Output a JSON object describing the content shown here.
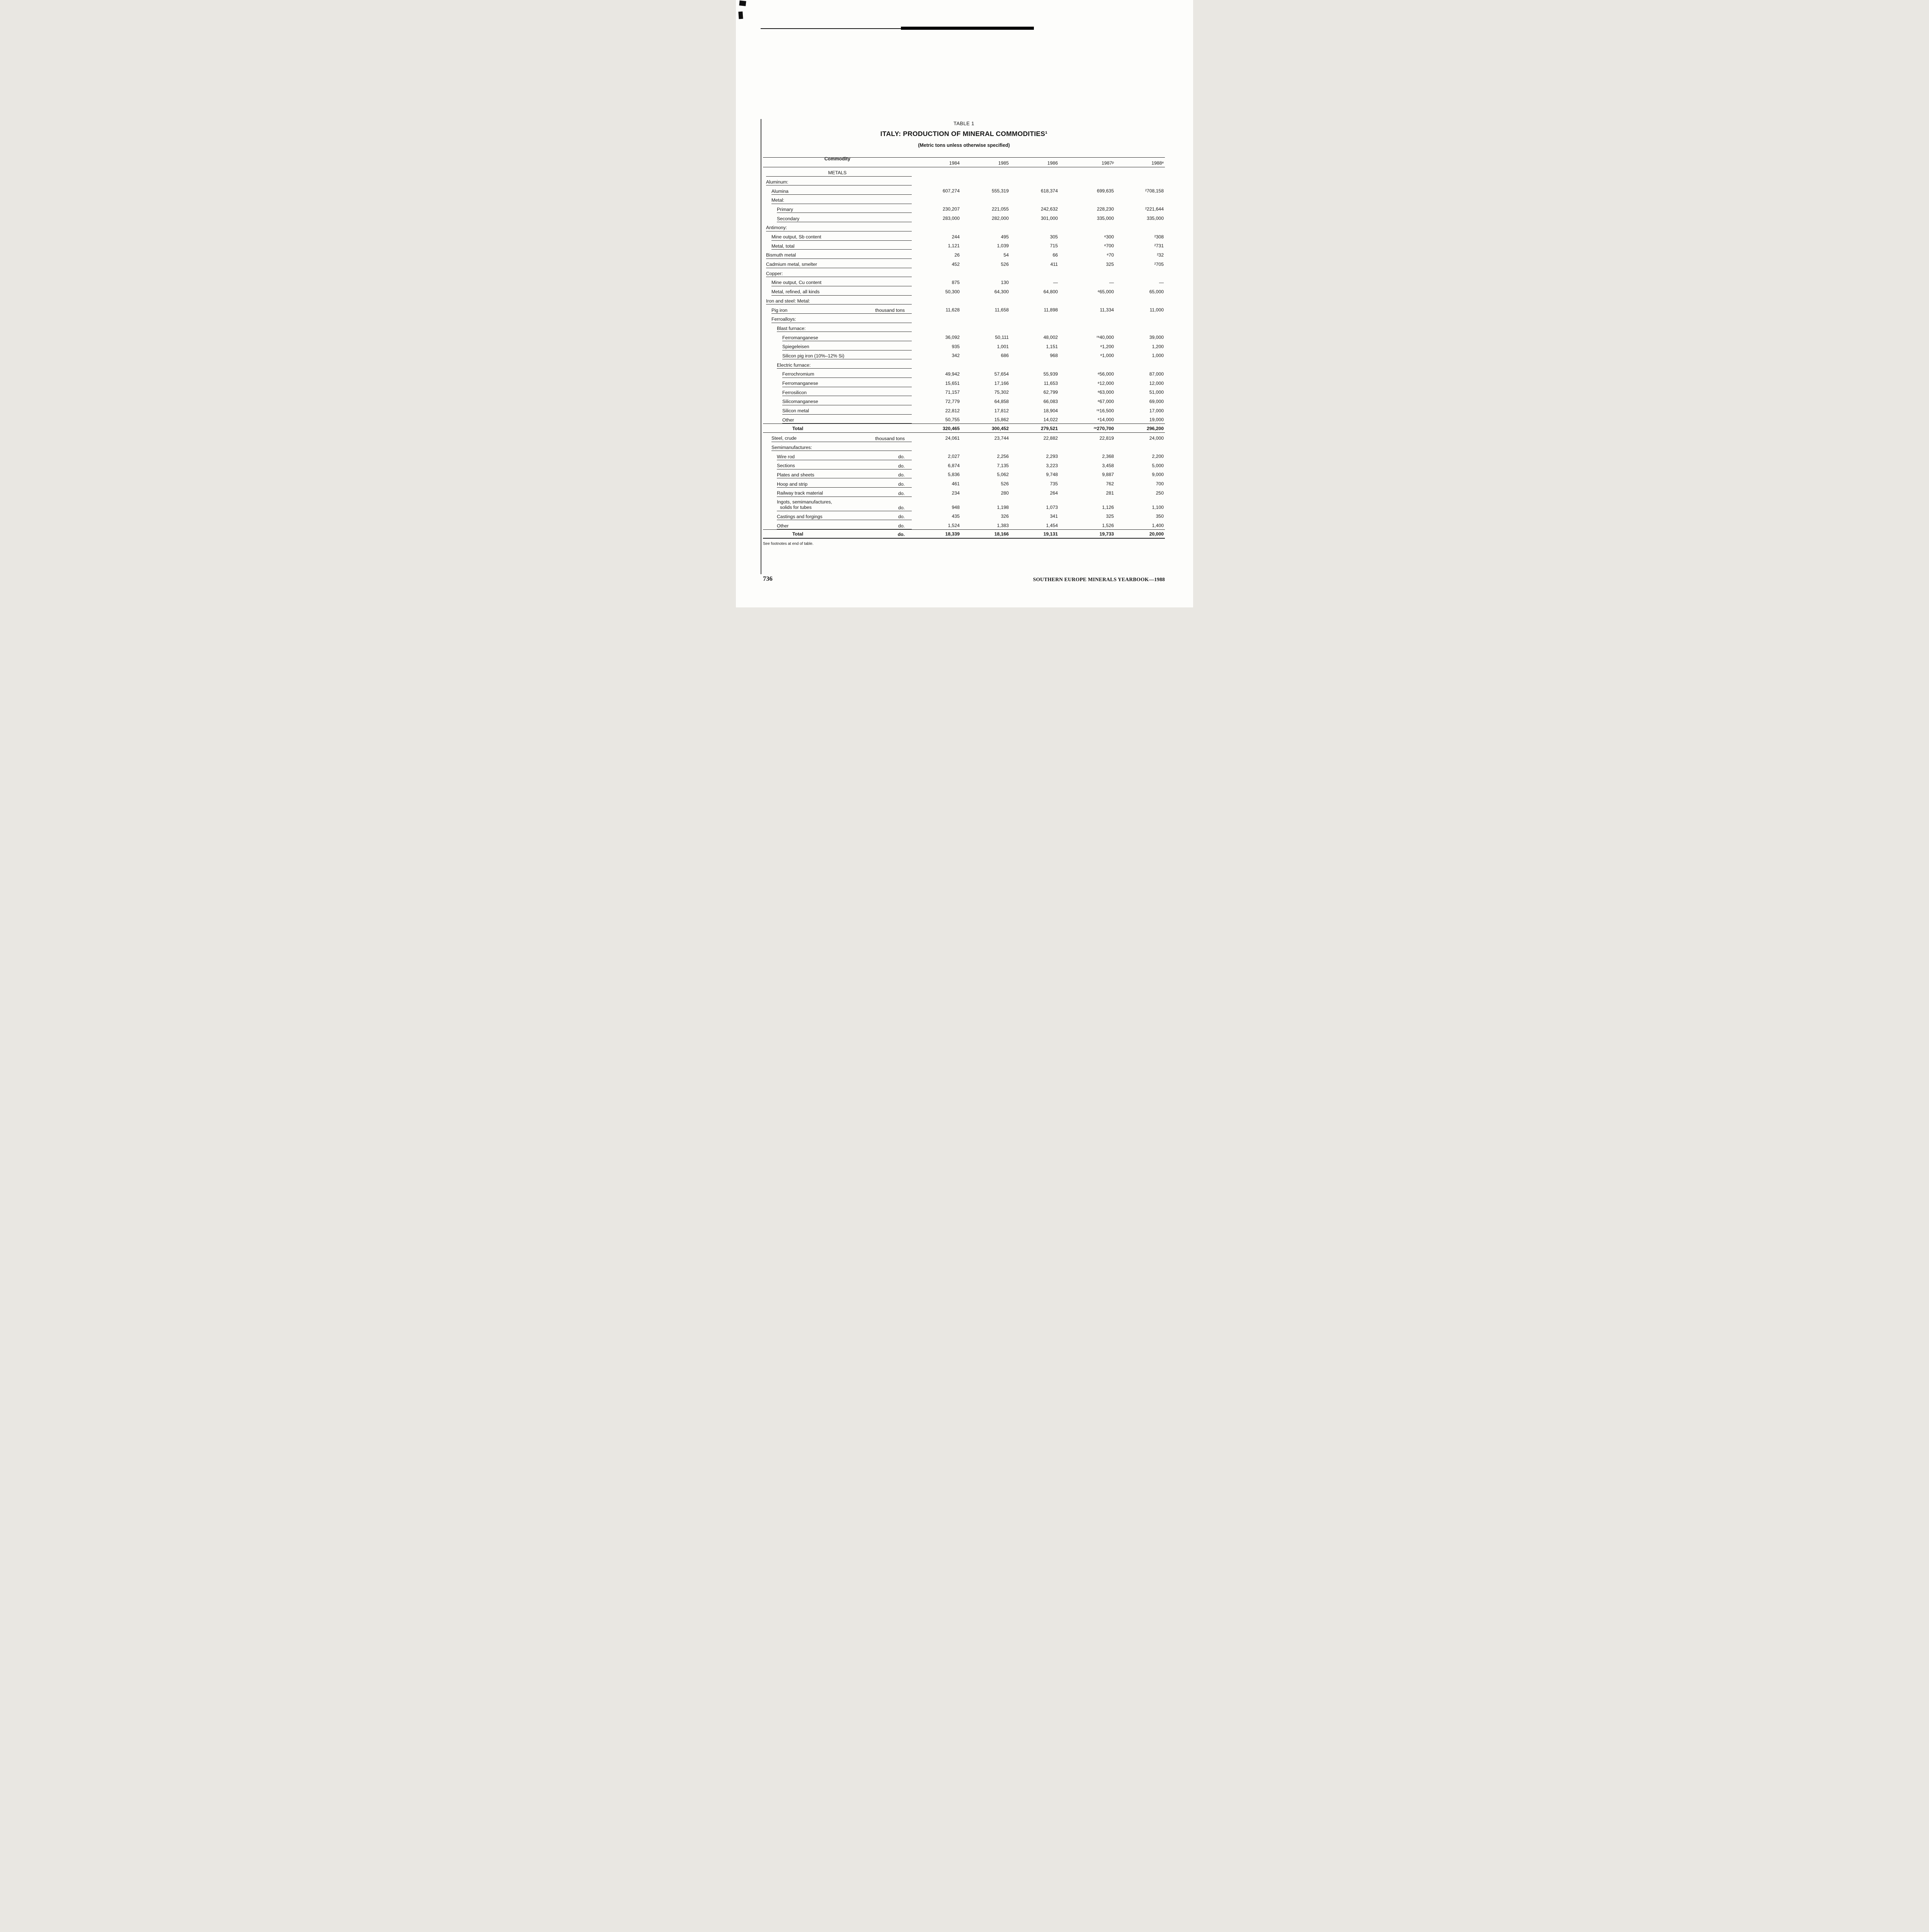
{
  "page": {
    "footnote": "See footnotes at end of table.",
    "page_number": "736",
    "footer_right": "SOUTHERN EUROPE MINERALS YEARBOOK—1988"
  },
  "table": {
    "caption": "TABLE 1",
    "title": "ITALY: PRODUCTION OF MINERAL COMMODITIES¹",
    "subtitle": "(Metric tons unless otherwise specified)",
    "columns": [
      "Commodity",
      "1984",
      "1985",
      "1986",
      "1987ᵖ",
      "1988ᵉ"
    ],
    "rows": [
      {
        "label": "METALS",
        "type": "center"
      },
      {
        "label": "Aluminum:",
        "indent": 0,
        "type": "section"
      },
      {
        "label": "Alumina",
        "indent": 1,
        "values": [
          "607,274",
          "555,319",
          "618,374",
          "699,635",
          "²708,158"
        ]
      },
      {
        "label": "Metal:",
        "indent": 1,
        "type": "section"
      },
      {
        "label": "Primary",
        "indent": 2,
        "values": [
          "230,207",
          "221,055",
          "242,632",
          "228,230",
          "²221,644"
        ]
      },
      {
        "label": "Secondary",
        "indent": 2,
        "values": [
          "283,000",
          "282,000",
          "301,000",
          "335,000",
          "335,000"
        ]
      },
      {
        "label": "Antimony:",
        "indent": 0,
        "type": "section"
      },
      {
        "label": "Mine output, Sb content",
        "indent": 1,
        "values": [
          "244",
          "495",
          "305",
          "ᵉ300",
          "²308"
        ]
      },
      {
        "label": "Metal, total",
        "indent": 1,
        "values": [
          "1,121",
          "1,039",
          "715",
          "ᵉ700",
          "²731"
        ]
      },
      {
        "label": "Bismuth metal",
        "indent": 0,
        "values": [
          "26",
          "54",
          "66",
          "ᵉ70",
          "²32"
        ]
      },
      {
        "label": "Cadmium metal, smelter",
        "indent": 0,
        "values": [
          "452",
          "526",
          "411",
          "325",
          "²705"
        ]
      },
      {
        "label": "Copper:",
        "indent": 0,
        "type": "section"
      },
      {
        "label": "Mine output, Cu content",
        "indent": 1,
        "values": [
          "875",
          "130",
          "—",
          "—",
          "—"
        ]
      },
      {
        "label": "Metal, refined, all kinds",
        "indent": 1,
        "values": [
          "50,300",
          "64,300",
          "64,800",
          "ᵉ65,000",
          "65,000"
        ]
      },
      {
        "label": "Iron and steel: Metal:",
        "indent": 0,
        "type": "section"
      },
      {
        "label": "Pig iron",
        "indent": 1,
        "unit": "thousand tons",
        "values": [
          "11,628",
          "11,658",
          "11,898",
          "11,334",
          "11,000"
        ]
      },
      {
        "label": "Ferroalloys:",
        "indent": 1,
        "type": "section"
      },
      {
        "label": "Blast furnace:",
        "indent": 2,
        "type": "section"
      },
      {
        "label": "Ferromanganese",
        "indent": 3,
        "values": [
          "36,092",
          "50,111",
          "48,002",
          "ʳᵉ40,000",
          "39,000"
        ]
      },
      {
        "label": "Spiegeleisen",
        "indent": 3,
        "values": [
          "935",
          "1,001",
          "1,151",
          "ᵉ1,200",
          "1,200"
        ]
      },
      {
        "label": "Silicon pig iron (10%–12% Si)",
        "indent": 3,
        "values": [
          "342",
          "686",
          "968",
          "ᵉ1,000",
          "1,000"
        ]
      },
      {
        "label": "Electric furnace:",
        "indent": 2,
        "type": "section"
      },
      {
        "label": "Ferrochromium",
        "indent": 3,
        "values": [
          "49,942",
          "57,654",
          "55,939",
          "ᵉ56,000",
          "87,000"
        ]
      },
      {
        "label": "Ferromanganese",
        "indent": 3,
        "values": [
          "15,651",
          "17,166",
          "11,653",
          "ᵉ12,000",
          "12,000"
        ]
      },
      {
        "label": "Ferrosilicon",
        "indent": 3,
        "values": [
          "71,157",
          "75,302",
          "62,799",
          "ᵉ63,000",
          "51,000"
        ]
      },
      {
        "label": "Silicomanganese",
        "indent": 3,
        "values": [
          "72,779",
          "64,858",
          "66,083",
          "ᵉ67,000",
          "69,000"
        ]
      },
      {
        "label": "Silicon metal",
        "indent": 3,
        "values": [
          "22,812",
          "17,812",
          "18,904",
          "ʳᵉ16,500",
          "17,000"
        ]
      },
      {
        "label": "Other",
        "indent": 3,
        "values": [
          "50,755",
          "15,862",
          "14,022",
          "ᵉ14,000",
          "19,000"
        ]
      },
      {
        "label": "Total",
        "indent": 4,
        "bold": true,
        "rule": "total",
        "values": [
          "320,465",
          "300,452",
          "279,521",
          "ʳᵉ270,700",
          "296,200"
        ]
      },
      {
        "label": "Steel, crude",
        "indent": 1,
        "unit": "thousand tons",
        "values": [
          "24,061",
          "23,744",
          "22,882",
          "22,819",
          "24,000"
        ]
      },
      {
        "label": "Semimanufactures:",
        "indent": 1,
        "type": "section"
      },
      {
        "label": "Wire rod",
        "indent": 2,
        "unit": "do.",
        "values": [
          "2,027",
          "2,256",
          "2,293",
          "2,368",
          "2,200"
        ]
      },
      {
        "label": "Sections",
        "indent": 2,
        "unit": "do.",
        "values": [
          "6,874",
          "7,135",
          "3,223",
          "3,458",
          "5,000"
        ]
      },
      {
        "label": "Plates and sheets",
        "indent": 2,
        "unit": "do.",
        "values": [
          "5,836",
          "5,062",
          "9,748",
          "9,887",
          "9,000"
        ]
      },
      {
        "label": "Hoop and strip",
        "indent": 2,
        "unit": "do.",
        "values": [
          "461",
          "526",
          "735",
          "762",
          "700"
        ]
      },
      {
        "label": "Railway track material",
        "indent": 2,
        "unit": "do.",
        "values": [
          "234",
          "280",
          "264",
          "281",
          "250"
        ]
      },
      {
        "label": "Ingots, semimanufactures,",
        "label2": "solids for tubes",
        "indent": 2,
        "unit": "do.",
        "values": [
          "948",
          "1,198",
          "1,073",
          "1,126",
          "1,100"
        ]
      },
      {
        "label": "Castings and forgings",
        "indent": 2,
        "unit": "do.",
        "values": [
          "435",
          "326",
          "341",
          "325",
          "350"
        ]
      },
      {
        "label": "Other",
        "indent": 2,
        "unit": "do.",
        "values": [
          "1,524",
          "1,383",
          "1,454",
          "1,526",
          "1,400"
        ]
      },
      {
        "label": "Total",
        "indent": 4,
        "bold": true,
        "rule": "total",
        "unit": "do.",
        "values": [
          "18,339",
          "18,166",
          "19,131",
          "19,733",
          "20,000"
        ]
      }
    ]
  }
}
